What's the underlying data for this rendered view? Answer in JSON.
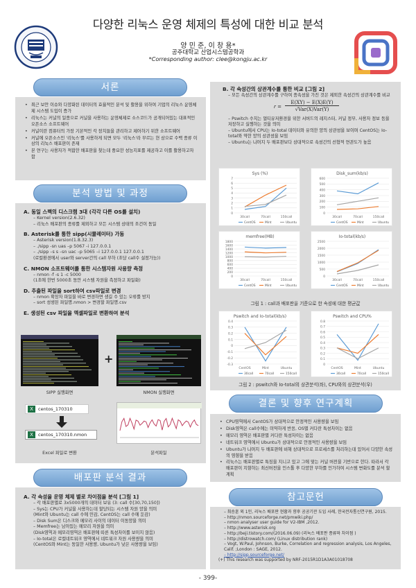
{
  "header": {
    "title": "다양한 리눅스 운영 체제의 특성에 대한 비교 분석",
    "authors": "양 민 준, 이 창 용*",
    "affiliation": "공주대학교 산업시스템공학과",
    "corresponding": "*Corresponding author: clee@kongju.ac.kr"
  },
  "sections": {
    "intro": "서론",
    "method": "분석 방법 및 과정",
    "results": "배포판 분석 결과",
    "conclusion": "결론 및 향후 연구계획",
    "references": "참고문헌"
  },
  "intro_bullets": [
    "최근 보안 이슈와 다양화된 데이터의 효율적인 분석 및 활용을 위하여 기업의 리눅스 운영체제 시스템 도입이 증가",
    "리눅스는 커널의 일종으로 커널을 사용하는 운영체제로 소스코드가 공개되어있는 대표적인 오픈소스 소프트웨어",
    "커널이란 컴퓨터의 가장 기본적인 각 장치들을 관리하고 제어하기 위한 소프트웨어",
    "커널에 오픈소스인 '리눅스'를 사용하게 되면 모두 '리눅스'라 부르는 현 상으로 수백 종류 이상의 리눅스 배포판이 존재",
    "본 연구는 사용자가 적합한 배포판을 찾는데 중요한 성능지표를 제공하고 이를 활용하고자 함"
  ],
  "method": {
    "steps": [
      {
        "head": "A. 동일 스펙의 디스크램 3대 (각각 다른 OS를 설치)",
        "lines": [
          "– Kernel version(2.6.32)",
          "– 리눅스 배포판의 종류를 제외하고 모든 시스템 상태의 조건이 동일"
        ]
      },
      {
        "head": "B. Asterisk를 통한 sipp(시뮬레이터) 가동",
        "lines": [
          "– Asterisk version(1.8.32.3)",
          "– ./sipp -sn uas –p 5067 -i 127.0.0.1",
          "– ./sipp –s s –sn uac –p 5065 –i 127.0.0.1 127.0.0.1",
          "(로컬환경에서 user와 server간의 call 부하 (초당 call수 설정가능))"
        ]
      },
      {
        "head": "C. NMON 소프트웨어를 통한 시스템자원 사용량 측정",
        "lines": [
          "– nmon -f -s 1 -c 5000",
          "(1초에 한번 5000초 동안 시스템 자원을 측정하고 파일화)"
        ]
      },
      {
        "head": "D. 추출된 파일을 sort하여 csv파일로 변경",
        "lines": [
          "– nmon 확장자 파일을 바로 변경하면 생길 수 있는 오류를 방지",
          "– sort 성생된 파일명.nmon > 변경할 파일명.csv"
        ]
      },
      {
        "head": "E. 생성된 csv 파일을 엑셀파일로 변환하여 분석",
        "lines": []
      }
    ],
    "sipp_caption": "SIPP 실행화면",
    "nmon_caption": "NMON 실행화면",
    "plus": "+",
    "file1": "centos_170310",
    "file2": "centos_170310.nmon",
    "excel_caption": "Excel 파일로 변환",
    "analysis_caption": "분석파일"
  },
  "results": {
    "head": "A. 각 속성을 운영 체제 별로 차이점을 분석 [그림 1]",
    "lines": [
      "– 각 배포판별로 3x5000개의 데이터 보유 (3: call 수[30,70,150])",
      "– Sys는 CPU가 커널을 사용하는데 할당되는 시스템 자원 양을 의미",
      "  (Mint와 Ubuntu는 call 수에 민감, CentOS는 call 수에 둔감)",
      "– Disk Sum은 디스크와 메모리 사이의 데이터 이동양을 의미",
      "– Memfree는 남아있는 메모리 자원을 의미",
      "  (Disk영역과 메모리영역은 배포판에 따른 특성차이를 보이지 않음)",
      "– Io-total은 로컬네트워크 영역에서 네트워크 자원 사용량을 의미",
      "  (CentOS와 Mint는 동일한 사용량, Ubuntu가 낮은 사용량을 보임)"
    ]
  },
  "corr": {
    "head": "B. 각 속성간의 상관계수를 통한 비교 [그림 2]",
    "intro": [
      "– 모든 속성간의 상관계수를 구하여 종속성을 가진 것은 제외한 속성간의 상관계수를 비교"
    ],
    "formula_r": "r =",
    "formula_num": "E(XY) − E(X)E(Y)",
    "formula_den": "√Var(X)Var(Y)",
    "lines": [
      "– Pswitch 수치는 멀티유저환경을 위한 서버드의 레지스터, 커널 정부, 사용자 정보 등을 저장하고 실행하는 것을 의미",
      "– Ubuntu에서 CPU는 Io-total 데이터와 유의한 양의 상관성을 보이며 CentOS는 Io-total와 약한 양의 상관성을 보임",
      "– Ubuntu는 나머지 두 배포판보다 상대적으로 속성간의 선형적 연관도가 높음"
    ]
  },
  "fig1_caption": "그림 1 : call과 배포판을 기준으로 한 속성에 대한 평균값",
  "fig2_caption": "그림 2 : pswitch와 Io-total의 상관분석(좌), CPU와의 상관분석(우)",
  "conclusion_bullets": [
    "CPU영역에서 CentOS가 상대적으로 안정적인 사용량을 보임",
    "Disk영역은 call수에는 미약하게 반응, OS별 커다란 특성차이는 없음",
    "메모리 영역은 배포판별 커다란 특성차이는 없음",
    "네트워크 영역에서 Ubuntu가 상대적으로 안정적인 사용량을 보임",
    "Ubuntu가 나머지 두 배포판에 비해 상대적으로 프로세스를 처리하는데 있어서 다양한 속성의 영향을 받음",
    "리눅스는 배포판별로 특징을 지니고 있고 그에 맞는 커널 버전을 기반으로 한다. 따라서 각 배포판이 지향하는 최신버전을 인스톨 후 다양한 부하를 인가하여 시스템 변화도를 분석 할 계획"
  ],
  "references": [
    "– 최승훈 외 1인, 리눅스 배포판 현황과 향후 공공기관 도입 사례, 한국전자통신연구원, 2015.",
    "– http://nmon.sourceforge.net/pmwiki.php/",
    "– nmon analyser user guide for V2-IBM ,2012.",
    "– http://www.asterisk.org",
    "– http://beji.tistory.com/(2016.06.09) (리눅스 배포판 종류와 차이점 )",
    "– http://distrowatch.com/ (Linux distribution rank)",
    "– Vogt, W.Paul, Johnson, Burke, Correlation and regression analysis, Los Angeles, Calif. ;London : SAGE, 2012.",
    "– http://sipp.sourceforge.net/"
  ],
  "ack": "(+) This research was supported by NRF-2015R1D1A3A01018708",
  "page_number": "- 399-",
  "chart_data": [
    {
      "type": "line",
      "title": "Sys (%)",
      "categories": [
        "30call",
        "70call",
        "150call"
      ],
      "ylim": [
        0,
        7
      ],
      "yticks": [
        0,
        1,
        2,
        3,
        4,
        5,
        6,
        7
      ],
      "series": [
        {
          "name": "CentOS",
          "values": [
            0.7,
            1.3,
            5.0
          ],
          "color": "#5b9bd5"
        },
        {
          "name": "Mint",
          "values": [
            1.2,
            3.6,
            5.6
          ],
          "color": "#ed7d31"
        },
        {
          "name": "Ubuntu",
          "values": [
            1.3,
            1.7,
            3.6
          ],
          "color": "#a5a5a5"
        }
      ]
    },
    {
      "type": "line",
      "title": "Disk_sum(kb/s)",
      "categories": [
        "30call",
        "70call",
        "150call"
      ],
      "ylim": [
        0,
        600
      ],
      "yticks": [
        0,
        100,
        200,
        300,
        400,
        500,
        600
      ],
      "series": [
        {
          "name": "CentOS",
          "values": [
            380,
            330,
            520
          ],
          "color": "#5b9bd5"
        },
        {
          "name": "Mint",
          "values": [
            60,
            70,
            110
          ],
          "color": "#ed7d31"
        },
        {
          "name": "Ubuntu",
          "values": [
            140,
            200,
            260
          ],
          "color": "#a5a5a5"
        }
      ]
    },
    {
      "type": "line",
      "title": "memfree(MB)",
      "categories": [
        "30call",
        "70call",
        "150call"
      ],
      "ylim": [
        0,
        1800
      ],
      "yticks": [
        0,
        200,
        400,
        600,
        800,
        1000,
        1200,
        1400,
        1600,
        1800
      ],
      "series": [
        {
          "name": "CentOS",
          "values": [
            1500,
            1450,
            1480
          ],
          "color": "#5b9bd5"
        },
        {
          "name": "Mint",
          "values": [
            1250,
            1200,
            1230
          ],
          "color": "#ed7d31"
        },
        {
          "name": "Ubuntu",
          "values": [
            1000,
            980,
            1020
          ],
          "color": "#a5a5a5"
        }
      ]
    },
    {
      "type": "line",
      "title": "Io-total(kb/s)",
      "categories": [
        "30call",
        "70call",
        "150call"
      ],
      "ylim": [
        0,
        2500
      ],
      "yticks": [
        0,
        500,
        1000,
        1500,
        2000,
        2500
      ],
      "series": [
        {
          "name": "CentOS",
          "values": [
            300,
            900,
            1900
          ],
          "color": "#5b9bd5"
        },
        {
          "name": "Mint",
          "values": [
            320,
            950,
            1850
          ],
          "color": "#ed7d31"
        },
        {
          "name": "Ubuntu",
          "values": [
            150,
            400,
            800
          ],
          "color": "#a5a5a5"
        }
      ]
    },
    {
      "type": "line",
      "title": "Pswitch and Io-total(kb/s)",
      "categories": [
        "CentOS",
        "Mint",
        "Ubuntu"
      ],
      "ylim": [
        -0.3,
        0.4
      ],
      "yticks": [
        -0.3,
        -0.2,
        -0.1,
        0,
        0.1,
        0.2,
        0.3,
        0.4
      ],
      "series": [
        {
          "name": "30call",
          "values": [
            0.3,
            -0.25,
            0.3
          ],
          "color": "#5b9bd5"
        },
        {
          "name": "70call",
          "values": [
            0.2,
            -0.15,
            0.15
          ],
          "color": "#ed7d31"
        },
        {
          "name": "150call",
          "values": [
            -0.05,
            0.05,
            0.25
          ],
          "color": "#a5a5a5"
        }
      ]
    },
    {
      "type": "line",
      "title": "Pswitch and CPU%",
      "categories": [
        "CentOS",
        "Mint",
        "Ubuntu"
      ],
      "ylim": [
        0,
        0.8
      ],
      "yticks": [
        0,
        0.1,
        0.2,
        0.3,
        0.4,
        0.5,
        0.6,
        0.7,
        0.8
      ],
      "series": [
        {
          "name": "30call",
          "values": [
            0.55,
            0.07,
            0.75
          ],
          "color": "#5b9bd5"
        },
        {
          "name": "70call",
          "values": [
            0.3,
            0.2,
            0.55
          ],
          "color": "#ed7d31"
        },
        {
          "name": "150call",
          "values": [
            0.3,
            0.1,
            0.3
          ],
          "color": "#a5a5a5"
        }
      ]
    }
  ]
}
